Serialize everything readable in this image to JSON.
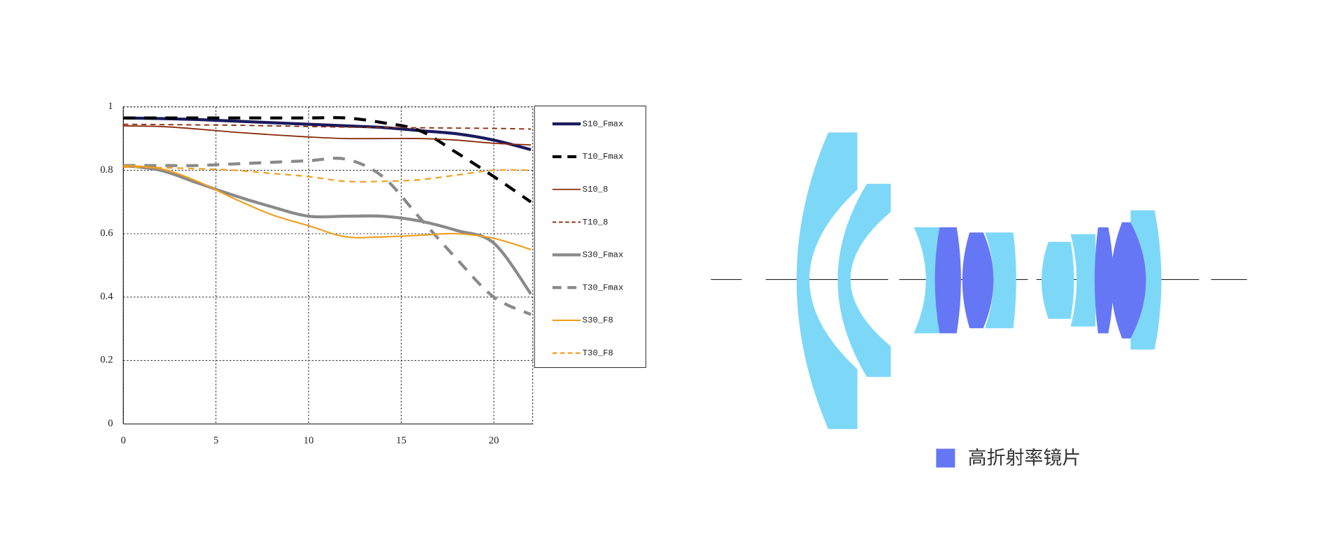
{
  "chart_data": {
    "type": "line",
    "x": [
      0,
      2,
      4,
      6,
      8,
      10,
      12,
      14,
      16,
      18,
      20,
      22
    ],
    "xlim": [
      0,
      22.1
    ],
    "xticks": [
      0,
      5,
      10,
      15,
      20
    ],
    "ylim": [
      0,
      1
    ],
    "yticks": [
      0,
      0.2,
      0.4,
      0.6,
      0.8,
      1
    ],
    "grid": true,
    "legend": "right",
    "series": [
      {
        "name": "S10_Fmax",
        "color": "#1a1a5e",
        "dashed": false,
        "width": 3.5,
        "values": [
          0.965,
          0.963,
          0.96,
          0.955,
          0.95,
          0.945,
          0.94,
          0.935,
          0.925,
          0.915,
          0.895,
          0.865
        ]
      },
      {
        "name": "T10_Fmax",
        "color": "#000000",
        "dashed": true,
        "width": 3.5,
        "values": [
          0.965,
          0.965,
          0.965,
          0.965,
          0.965,
          0.965,
          0.965,
          0.95,
          0.925,
          0.855,
          0.78,
          0.7
        ]
      },
      {
        "name": "S10_8",
        "color": "#8b2a0a",
        "dashed": false,
        "width": 1.5,
        "values": [
          0.94,
          0.938,
          0.93,
          0.92,
          0.912,
          0.905,
          0.9,
          0.9,
          0.9,
          0.895,
          0.885,
          0.88
        ]
      },
      {
        "name": "T10_8",
        "color": "#8b2a0a",
        "dashed": true,
        "width": 1.5,
        "values": [
          0.945,
          0.944,
          0.943,
          0.942,
          0.94,
          0.938,
          0.936,
          0.935,
          0.934,
          0.933,
          0.932,
          0.93
        ]
      },
      {
        "name": "S30_Fmax",
        "color": "#8a8a8a",
        "dashed": false,
        "width": 3.5,
        "values": [
          0.815,
          0.8,
          0.76,
          0.72,
          0.685,
          0.655,
          0.655,
          0.655,
          0.64,
          0.61,
          0.57,
          0.41
        ]
      },
      {
        "name": "T30_Fmax",
        "color": "#8a8a8a",
        "dashed": true,
        "width": 3.5,
        "values": [
          0.815,
          0.815,
          0.815,
          0.82,
          0.825,
          0.83,
          0.835,
          0.78,
          0.65,
          0.52,
          0.4,
          0.345
        ]
      },
      {
        "name": "S30_F8",
        "color": "#f0a020",
        "dashed": false,
        "width": 1.8,
        "values": [
          0.815,
          0.805,
          0.765,
          0.71,
          0.66,
          0.625,
          0.59,
          0.59,
          0.595,
          0.6,
          0.585,
          0.55
        ]
      },
      {
        "name": "T30_F8",
        "color": "#f0a020",
        "dashed": true,
        "width": 1.8,
        "values": [
          0.81,
          0.808,
          0.805,
          0.8,
          0.79,
          0.78,
          0.765,
          0.765,
          0.77,
          0.785,
          0.8,
          0.8
        ]
      }
    ]
  },
  "lens_diagram": {
    "legend": "高折射率镜片"
  }
}
